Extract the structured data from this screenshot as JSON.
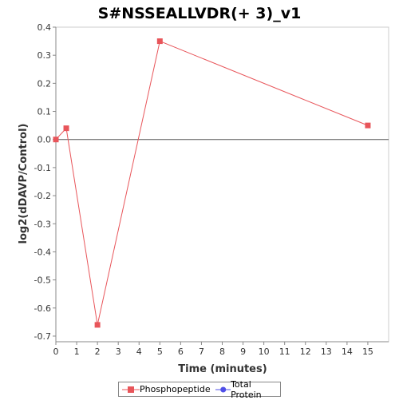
{
  "chart_data": {
    "type": "line",
    "title": "S#NSSEALLVDR(+ 3)_v1",
    "xlabel": "Time (minutes)",
    "ylabel": "log2(dDAVP/Control)",
    "xlim": [
      0,
      16
    ],
    "ylim": [
      -0.72,
      0.4
    ],
    "x_ticks": [
      0,
      1,
      2,
      3,
      4,
      5,
      6,
      7,
      8,
      9,
      10,
      11,
      12,
      13,
      14,
      15
    ],
    "y_ticks": [
      0.4,
      0.3,
      0.2,
      0.1,
      0.0,
      -0.1,
      -0.2,
      -0.3,
      -0.4,
      -0.5,
      -0.6,
      -0.7
    ],
    "y_tick_labels": [
      "0.4",
      "0.3",
      "0.2",
      "0.1",
      "0.0",
      "-0.1",
      "-0.2",
      "-0.3",
      "-0.4",
      "-0.5",
      "-0.6",
      "-0.7"
    ],
    "grid": false,
    "series": [
      {
        "name": "Phosphopeptide",
        "color": "#e8555a",
        "marker": "square",
        "x": [
          0,
          0.5,
          2,
          5,
          15
        ],
        "y": [
          0.0,
          0.04,
          -0.66,
          0.35,
          0.05
        ]
      }
    ],
    "legend": {
      "position": "bottom-center",
      "entries": [
        {
          "label": "Phosphopeptide",
          "color": "#e8555a",
          "marker": "square"
        },
        {
          "label": "Total Protein",
          "color": "#5050e8",
          "marker": "circle"
        }
      ]
    }
  }
}
